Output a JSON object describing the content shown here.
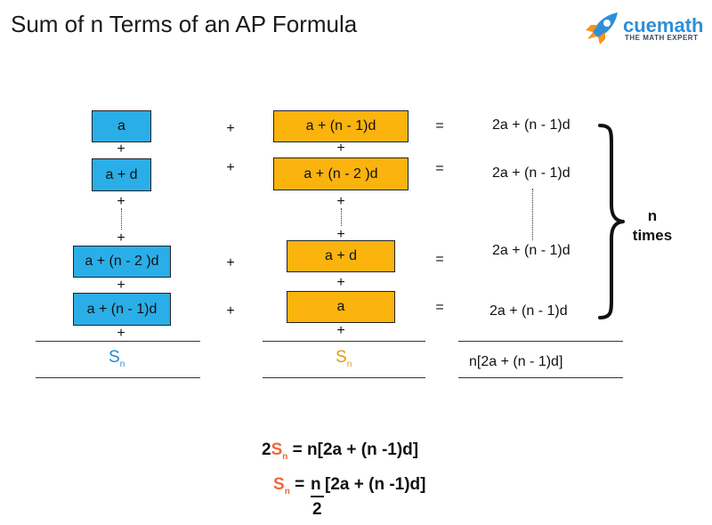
{
  "title": "Sum of n Terms of an AP Formula",
  "brand": {
    "name": "cuemath",
    "tagline": "THE MATH EXPERT",
    "rocket_icon": "rocket-icon"
  },
  "colors": {
    "blue_box": "#2aaee8",
    "gold_box": "#fbb30e",
    "s_blue": "#1b8ccf",
    "s_gold": "#e59a12",
    "s_orange": "#f0673a"
  },
  "left_terms": [
    "a",
    "a + d",
    "a + (n - 2 )d",
    "a + (n - 1)d"
  ],
  "middle_terms": [
    "a + (n - 1)d",
    "a + (n - 2 )d",
    "a + d",
    "a"
  ],
  "plus": "+",
  "equals": "=",
  "rhs_terms": [
    "2a + (n - 1)d",
    "2a + (n - 1)d",
    "2a + (n - 1)d",
    "2a + (n - 1)d"
  ],
  "sum_symbol": {
    "base": "S",
    "sub": "n"
  },
  "rhs_total": "n[2a + (n - 1)d]",
  "brace_label": {
    "line1": "n",
    "line2": "times"
  },
  "formula1": {
    "coef": "2",
    "base": "S",
    "sub": "n",
    "rest": " = n[2a + (n -1)d]"
  },
  "formula2": {
    "base": "S",
    "sub": "n",
    "eq": " = ",
    "numerator": "n",
    "denominator": "2",
    "rest": " [2a + (n -1)d]"
  }
}
